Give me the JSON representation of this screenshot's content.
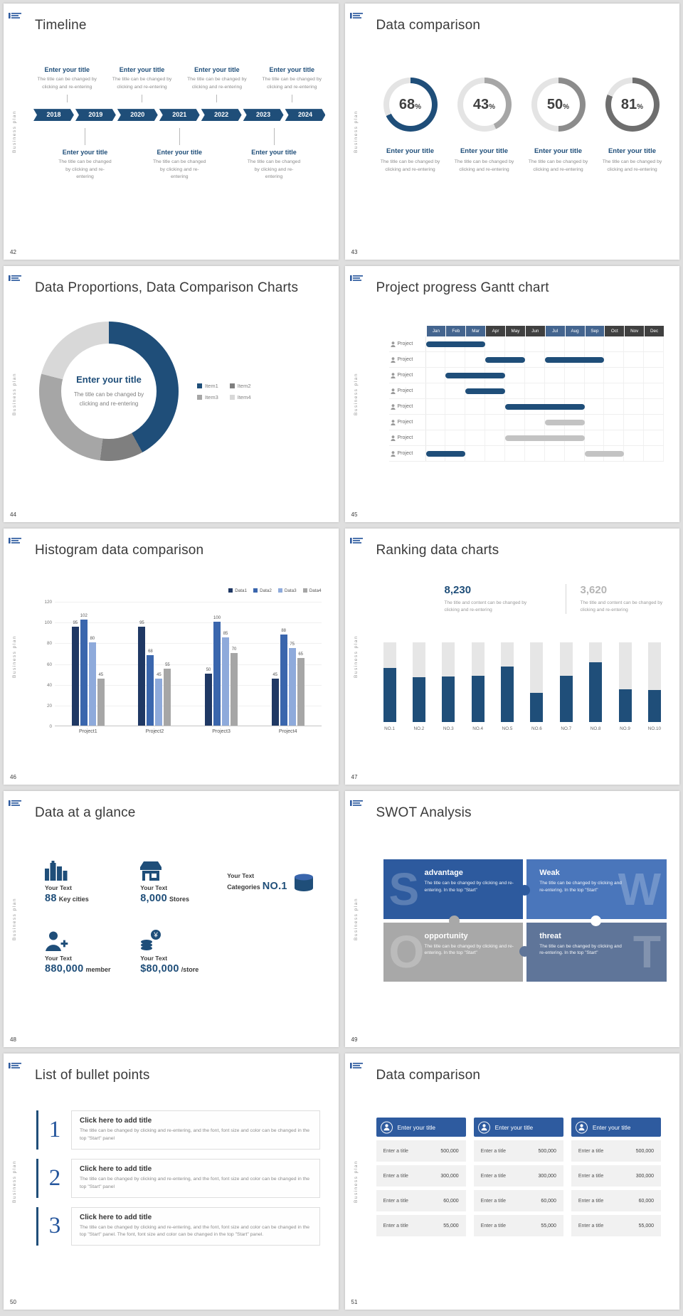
{
  "page": {
    "background": "#dfdfdf",
    "slide_background": "#ffffff"
  },
  "shared": {
    "vertical_label": "Business plan",
    "accent_blue": "#1f4e79"
  },
  "slides": {
    "timeline": {
      "number": "42",
      "title": "Timeline",
      "years": [
        "2018",
        "2019",
        "2020",
        "2021",
        "2022",
        "2023",
        "2024"
      ],
      "year_color": "#1f4e79",
      "item_title": "Enter your title",
      "item_desc": "The title can be changed by clicking and re-entering",
      "top_items": 4,
      "bottom_items": 3
    },
    "rings": {
      "number": "43",
      "title": "Data comparison",
      "item_title": "Enter your title",
      "item_desc": "The title can be changed by clicking and re-entering",
      "chart_data": {
        "type": "donut-progress",
        "track_color": "#e4e4e4",
        "items": [
          {
            "percent": 68,
            "color": "#1f4e79"
          },
          {
            "percent": 43,
            "color": "#a6a6a6"
          },
          {
            "percent": 50,
            "color": "#8c8c8c"
          },
          {
            "percent": 81,
            "color": "#6e6e6e"
          }
        ]
      }
    },
    "donut": {
      "number": "44",
      "title": "Data Proportions, Data Comparison Charts",
      "center_title": "Enter your title",
      "center_desc": "The title can be changed by clicking and re-entering",
      "chart_data": {
        "type": "pie",
        "segments": [
          {
            "label": "Item1",
            "value": 42,
            "color": "#1f4e79"
          },
          {
            "label": "Item2",
            "value": 10,
            "color": "#7f7f7f"
          },
          {
            "label": "Item3",
            "value": 27,
            "color": "#a6a6a6"
          },
          {
            "label": "Item4",
            "value": 21,
            "color": "#d8d8d8"
          }
        ]
      }
    },
    "gantt": {
      "number": "45",
      "title": "Project progress Gantt chart",
      "row_label": "Project",
      "chart_data": {
        "type": "gantt",
        "months": [
          "Jan",
          "Feb",
          "Mar",
          "Apr",
          "May",
          "Jun",
          "Jul",
          "Aug",
          "Sep",
          "Oct",
          "Nov",
          "Dec"
        ],
        "month_header_colors": [
          "blue",
          "blue",
          "blue",
          "dark",
          "dark",
          "dark",
          "blue",
          "blue",
          "blue",
          "dark",
          "dark",
          "dark"
        ],
        "colors": {
          "blue": "#1f4e79",
          "gray": "#c3c3c3",
          "header_blue": "#44658f",
          "header_dark": "#404040"
        },
        "rows": [
          {
            "bars": [
              {
                "start": 0,
                "span": 3,
                "color": "blue"
              }
            ]
          },
          {
            "bars": [
              {
                "start": 3,
                "span": 2,
                "color": "blue"
              },
              {
                "start": 6,
                "span": 3,
                "color": "blue"
              }
            ]
          },
          {
            "bars": [
              {
                "start": 1,
                "span": 3,
                "color": "blue"
              }
            ]
          },
          {
            "bars": [
              {
                "start": 2,
                "span": 2,
                "color": "blue"
              }
            ]
          },
          {
            "bars": [
              {
                "start": 4,
                "span": 4,
                "color": "blue"
              }
            ]
          },
          {
            "bars": [
              {
                "start": 6,
                "span": 2,
                "color": "gray"
              }
            ]
          },
          {
            "bars": [
              {
                "start": 4,
                "span": 4,
                "color": "gray"
              }
            ]
          },
          {
            "bars": [
              {
                "start": 0,
                "span": 2,
                "color": "blue"
              },
              {
                "start": 8,
                "span": 2,
                "color": "gray"
              }
            ]
          }
        ]
      }
    },
    "histogram": {
      "number": "46",
      "title": "Histogram data comparison",
      "chart_data": {
        "type": "bar",
        "categories": [
          "Project1",
          "Project2",
          "Project3",
          "Project4"
        ],
        "series": [
          {
            "name": "Data1",
            "color": "#1f3864",
            "values": [
              95,
              95,
              50,
              45
            ]
          },
          {
            "name": "Data2",
            "color": "#3a66ad",
            "values": [
              102,
              68,
              100,
              88
            ]
          },
          {
            "name": "Data3",
            "color": "#8eaadb",
            "values": [
              80,
              45,
              85,
              75
            ]
          },
          {
            "name": "Data4",
            "color": "#a6a6a6",
            "values": [
              45,
              55,
              70,
              65
            ]
          }
        ],
        "y_ticks": [
          0,
          20,
          40,
          60,
          80,
          100,
          120
        ],
        "ymax": 120
      }
    },
    "ranking": {
      "number": "47",
      "title": "Ranking data charts",
      "stat_left": {
        "value": "8,230",
        "desc": "The title and content can be changed by clicking and re-entering",
        "color": "#1f4e79"
      },
      "stat_right": {
        "value": "3,620",
        "desc": "The title and content can be changed by clicking and re-entering",
        "color": "#b5b5b5"
      },
      "chart_data": {
        "type": "bar",
        "categories": [
          "NO.1",
          "NO.2",
          "NO.3",
          "NO.4",
          "NO.5",
          "NO.6",
          "NO.7",
          "NO.8",
          "NO.9",
          "NO.10"
        ],
        "values_percent": [
          68,
          56,
          57,
          58,
          70,
          37,
          58,
          75,
          41,
          40
        ],
        "bar_color": "#1f4e79",
        "track_color": "#e6e6e6"
      }
    },
    "glance": {
      "number": "48",
      "title": "Data at a glance",
      "items": [
        {
          "label": "Your Text",
          "value": "88",
          "suffix": "Key cities",
          "icon": "city-icon"
        },
        {
          "label": "Your Text",
          "value": "8,000",
          "suffix": "Stores",
          "icon": "store-icon"
        },
        {
          "label": "Your Text",
          "prefix": "Categories",
          "value": "NO.1",
          "icon": "database-icon",
          "icon_right": true
        },
        {
          "label": "Your Text",
          "value": "880,000",
          "suffix": "member",
          "icon": "member-icon"
        },
        {
          "label": "Your Text",
          "value": "$80,000",
          "suffix": "/store",
          "icon": "coins-icon"
        }
      ]
    },
    "swot": {
      "number": "49",
      "title": "SWOT Analysis",
      "cells": [
        {
          "letter": "S",
          "heading": "advantage",
          "desc": "The title can be changed by clicking and re-entering. In the top \"Start\"",
          "color": "#2d5a9e",
          "letter_side": "left"
        },
        {
          "letter": "W",
          "heading": "Weak",
          "desc": "The title can be changed by clicking and re-entering. In the top \"Start\"",
          "color": "#4a76bb",
          "letter_side": "right"
        },
        {
          "letter": "O",
          "heading": "opportunity",
          "desc": "The title can be changed by clicking and re-entering. In the top \"Start\"",
          "color": "#a8a8a8",
          "letter_side": "left"
        },
        {
          "letter": "T",
          "heading": "threat",
          "desc": "The title can be changed by clicking and re-entering. In the top \"Start\"",
          "color": "#5f7599",
          "letter_side": "right"
        }
      ]
    },
    "bullets": {
      "number": "50",
      "title": "List of bullet points",
      "items": [
        {
          "num": "1",
          "heading": "Click here to add title",
          "desc": "The title can be changed by clicking and re-entering, and the font, font size and color can be changed in the top \"Start\" panel"
        },
        {
          "num": "2",
          "heading": "Click here to add title",
          "desc": "The title can be changed by clicking and re-entering, and the font, font size and color can be changed in the top \"Start\" panel"
        },
        {
          "num": "3",
          "heading": "Click here to add title",
          "desc": "The title can be changed by clicking and re-entering, and the font, font size and color can be changed in the top \"Start\" panel. The font, font size and color can be changed in the top \"Start\" panel."
        }
      ]
    },
    "compare": {
      "number": "51",
      "title": "Data comparison",
      "columns": 3,
      "header_title": "Enter your title",
      "header_color": "#2e5b9f",
      "row_label": "Enter a title",
      "values": [
        "500,000",
        "300,000",
        "60,000",
        "55,000"
      ]
    }
  }
}
